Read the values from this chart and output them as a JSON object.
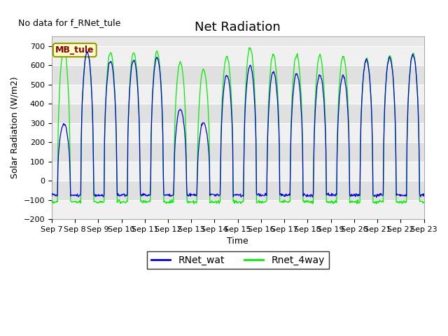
{
  "title": "Net Radiation",
  "xlabel": "Time",
  "ylabel": "Solar Radiation (W/m2)",
  "no_data_text": "No data for f_RNet_tule",
  "station_label": "MB_tule",
  "ylim": [
    -200,
    750
  ],
  "yticks": [
    -200,
    -100,
    0,
    100,
    200,
    300,
    400,
    500,
    600,
    700
  ],
  "line_blue_color": "#0000dd",
  "line_green_color": "#00ee00",
  "line_blue_label": "RNet_wat",
  "line_green_label": "Rnet_4way",
  "bg_color": "#ffffff",
  "plot_bg_color": "#e8e8e8",
  "n_days": 16,
  "start_day": 7,
  "night_green": -110,
  "night_blue": -75,
  "title_fontsize": 13,
  "label_fontsize": 9,
  "tick_fontsize": 8
}
